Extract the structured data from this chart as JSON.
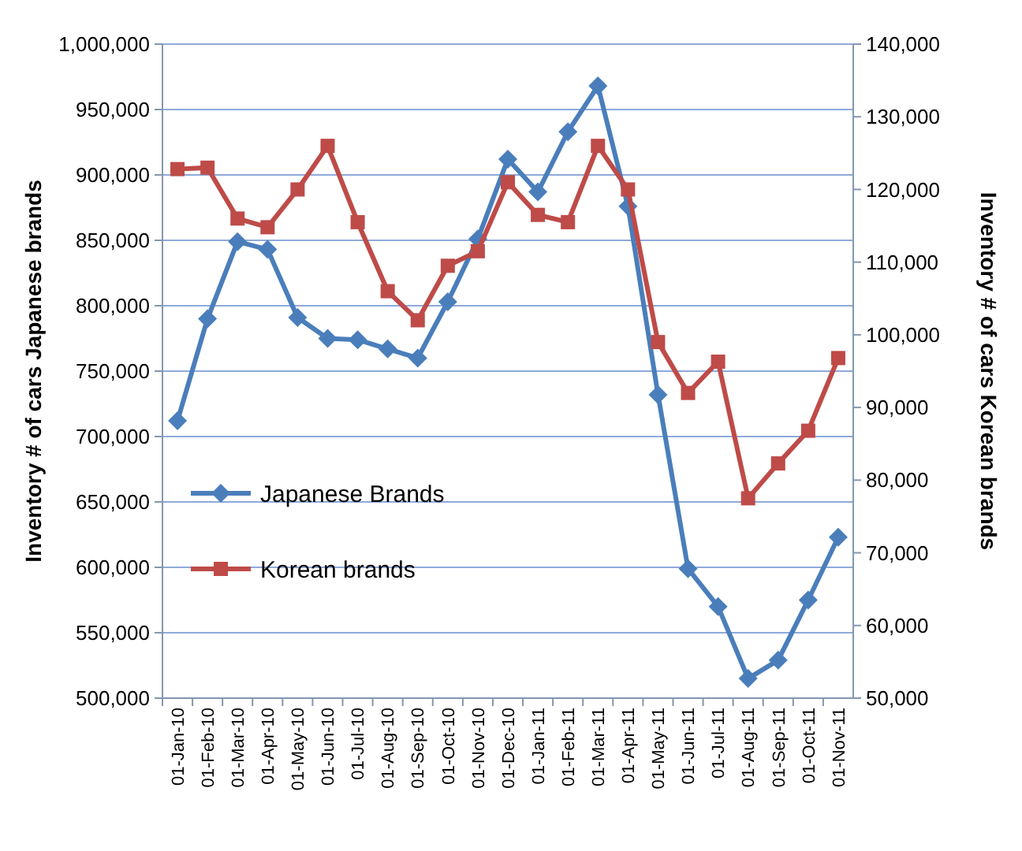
{
  "chart_data": {
    "type": "line",
    "categories": [
      "01-Jan-10",
      "01-Feb-10",
      "01-Mar-10",
      "01-Apr-10",
      "01-May-10",
      "01-Jun-10",
      "01-Jul-10",
      "01-Aug-10",
      "01-Sep-10",
      "01-Oct-10",
      "01-Nov-10",
      "01-Dec-10",
      "01-Jan-11",
      "01-Feb-11",
      "01-Mar-11",
      "01-Apr-11",
      "01-May-11",
      "01-Jun-11",
      "01-Jul-11",
      "01-Aug-11",
      "01-Sep-11",
      "01-Oct-11",
      "01-Nov-11"
    ],
    "series": [
      {
        "name": "Japanese Brands",
        "color": "#4a7ebb",
        "marker": "diamond",
        "values": [
          712000,
          790000,
          849000,
          843000,
          791000,
          775000,
          774000,
          767000,
          760000,
          803000,
          851000,
          912000,
          887000,
          933000,
          968000,
          876000,
          732000,
          599000,
          570000,
          515000,
          529000,
          575000,
          623000
        ]
      },
      {
        "name": "Korean brands",
        "color": "#be4b48",
        "marker": "square",
        "axis": "y2",
        "values": [
          122800,
          123000,
          116000,
          114800,
          120000,
          126000,
          115500,
          106000,
          102000,
          109500,
          111500,
          121000,
          116500,
          115500,
          126000,
          120000,
          99000,
          92000,
          96300,
          77500,
          82300,
          86800,
          96800
        ]
      }
    ],
    "ylabel": "Inventory # of cars Japanese brands",
    "y2label": "Inventory # of cars Korean brands",
    "ylim": [
      500000,
      1000000
    ],
    "yticks": [
      {
        "value": 500000,
        "label": "500,000"
      },
      {
        "value": 550000,
        "label": "550,000"
      },
      {
        "value": 600000,
        "label": "600,000"
      },
      {
        "value": 650000,
        "label": "650,000"
      },
      {
        "value": 700000,
        "label": "700,000"
      },
      {
        "value": 750000,
        "label": "750,000"
      },
      {
        "value": 800000,
        "label": "800,000"
      },
      {
        "value": 850000,
        "label": "850,000"
      },
      {
        "value": 900000,
        "label": "900,000"
      },
      {
        "value": 950000,
        "label": "950,000"
      },
      {
        "value": 1000000,
        "label": "1,000,000"
      }
    ],
    "y2lim": [
      50000,
      140000
    ],
    "y2ticks": [
      {
        "value": 50000,
        "label": "50,000"
      },
      {
        "value": 60000,
        "label": "60,000"
      },
      {
        "value": 70000,
        "label": "70,000"
      },
      {
        "value": 80000,
        "label": "80,000"
      },
      {
        "value": 90000,
        "label": "90,000"
      },
      {
        "value": 100000,
        "label": "100,000"
      },
      {
        "value": 110000,
        "label": "110,000"
      },
      {
        "value": 120000,
        "label": "120,000"
      },
      {
        "value": 130000,
        "label": "130,000"
      },
      {
        "value": 140000,
        "label": "140,000"
      }
    ],
    "grid": "y",
    "legend": "left"
  }
}
